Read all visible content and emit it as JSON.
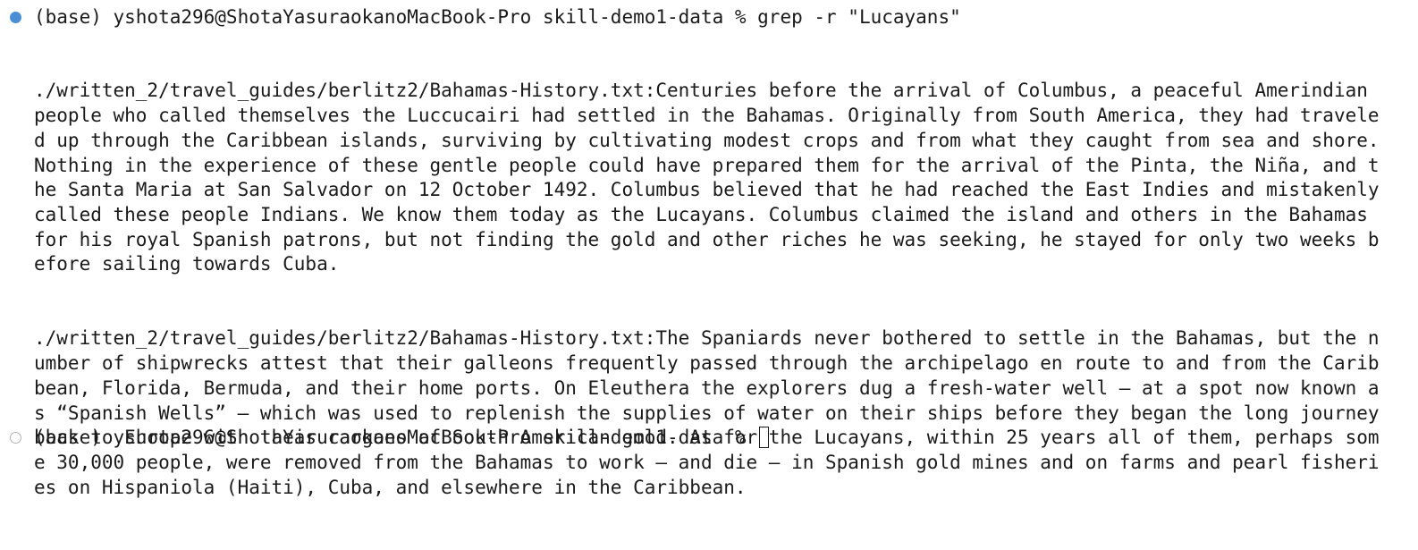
{
  "terminal": {
    "cutoff_line": "                                                                                                                        ",
    "command_prompt": "(base) yshota296@ShotaYasuraokanoMacBook-Pro skill-demo1-data % grep -r \"Lucayans\"",
    "output_lines": [
      "./written_2/travel_guides/berlitz2/Bahamas-History.txt:Centuries before the arrival of Columbus, a peaceful Amerindian people who called themselves the Luccucairi had settled in the Bahamas. Originally from South America, they had traveled up through the Caribbean islands, surviving by cultivating modest crops and from what they caught from sea and shore. Nothing in the experience of these gentle people could have prepared them for the arrival of the Pinta, the Niña, and the Santa Maria at San Salvador on 12 October 1492. Columbus believed that he had reached the East Indies and mistakenly called these people Indians. We know them today as the Lucayans. Columbus claimed the island and others in the Bahamas for his royal Spanish patrons, but not finding the gold and other riches he was seeking, he stayed for only two weeks before sailing towards Cuba.",
      "./written_2/travel_guides/berlitz2/Bahamas-History.txt:The Spaniards never bothered to settle in the Bahamas, but the number of shipwrecks attest that their galleons frequently passed through the archipelago en route to and from the Caribbean, Florida, Bermuda, and their home ports. On Eleuthera the explorers dug a fresh-water well — at a spot now known as “Spanish Wells” — which was used to replenish the supplies of water on their ships before they began the long journey back to Europe with their cargoes of South American gold. As for the Lucayans, within 25 years all of them, perhaps some 30,000 people, were removed from the Bahamas to work — and die — in Spanish gold mines and on farms and pearl fisheries on Hispaniola (Haiti), Cuba, and elsewhere in the Caribbean."
    ],
    "current_prompt": "(base) yshota296@ShotaYasuraokanoMacBook-Pro skill-demo1-data % ",
    "markers": {
      "completed_color": "#4a8fd6",
      "pending_color": "#b0b0b0"
    }
  }
}
